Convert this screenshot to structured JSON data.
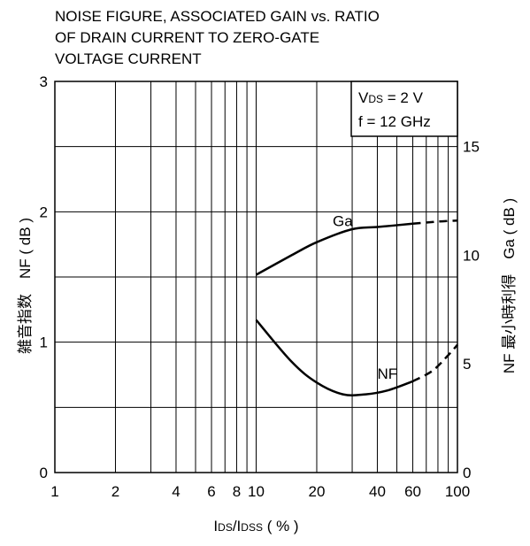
{
  "chart_data": {
    "type": "line",
    "title_lines": [
      "NOISE FIGURE, ASSOCIATED GAIN vs. RATIO",
      "OF DRAIN CURRENT TO ZERO-GATE",
      "VOLTAGE CURRENT"
    ],
    "x_axis": {
      "scale": "log",
      "range": [
        1,
        100
      ],
      "tick_values": [
        1,
        2,
        4,
        6,
        8,
        10,
        20,
        40,
        60,
        100
      ],
      "tick_labels": [
        "1",
        "2",
        "4",
        "6",
        "8",
        "10",
        "20",
        "40",
        "60",
        "100"
      ],
      "gridlines": [
        1,
        2,
        3,
        4,
        5,
        6,
        7,
        8,
        9,
        10,
        20,
        30,
        40,
        50,
        60,
        70,
        80,
        90,
        100
      ],
      "label": {
        "parts": [
          {
            "text": "I",
            "size": "normal"
          },
          {
            "text": "DS",
            "size": "small"
          },
          {
            "text": "/I",
            "size": "normal"
          },
          {
            "text": "DSS",
            "size": "small"
          },
          {
            "text": " ( % )",
            "size": "normal"
          }
        ]
      }
    },
    "y_left": {
      "label": "雑音指数　NF ( dB )",
      "range": [
        0,
        3
      ],
      "ticks": [
        0,
        0.5,
        1,
        1.5,
        2,
        2.5,
        3
      ],
      "tick_labels": [
        {
          "value": 0,
          "text": "0"
        },
        {
          "value": 1,
          "text": "1"
        },
        {
          "value": 2,
          "text": "2"
        },
        {
          "value": 3,
          "text": "3"
        }
      ]
    },
    "y_right": {
      "label": "NF 最小時利得　Ga ( dB )",
      "range": [
        0,
        18
      ],
      "tick_labels": [
        {
          "value": 0,
          "text": "0"
        },
        {
          "value": 5,
          "text": "5"
        },
        {
          "value": 10,
          "text": "10"
        },
        {
          "value": 15,
          "text": "15"
        }
      ]
    },
    "grid": true,
    "conditions": {
      "line1": {
        "parts": [
          {
            "text": "V",
            "size": "normal"
          },
          {
            "text": "DS",
            "size": "small"
          },
          {
            "text": " = 2 V",
            "size": "normal"
          }
        ]
      },
      "line2": "f = 12 GHz",
      "placement": "top-right"
    },
    "series": [
      {
        "name": "Ga",
        "axis": "right",
        "x": [
          10,
          15,
          20,
          30,
          40,
          60
        ],
        "y": [
          9.1,
          10.0,
          10.6,
          11.2,
          11.3,
          11.45
        ],
        "dashed_x": [
          60,
          80,
          100
        ],
        "dashed_y": [
          11.45,
          11.55,
          11.6
        ],
        "label_at": [
          24,
          11.35
        ]
      },
      {
        "name": "NF",
        "axis": "left",
        "x": [
          10,
          15,
          20,
          27,
          35,
          45,
          60
        ],
        "y": [
          1.17,
          0.85,
          0.69,
          0.6,
          0.6,
          0.63,
          0.7
        ],
        "dashed_x": [
          60,
          75,
          90,
          100
        ],
        "dashed_y": [
          0.7,
          0.78,
          0.9,
          0.98
        ],
        "label_at": [
          40,
          0.72
        ]
      }
    ]
  }
}
